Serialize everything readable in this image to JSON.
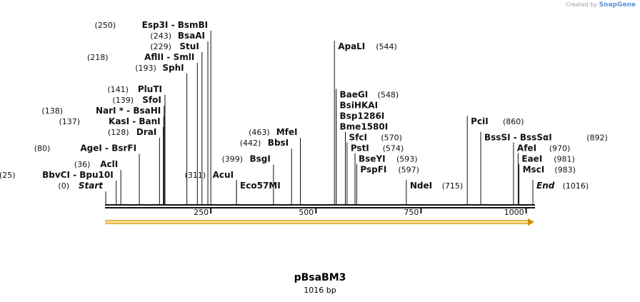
{
  "credit": {
    "prefix": "Created by",
    "brand": "SnapGene"
  },
  "plasmid": {
    "name": "pBsaBM3",
    "length_text": "1016 bp",
    "length": 1016
  },
  "colors": {
    "feature_fill": "#f5d78a",
    "feature_stroke": "#d9a017",
    "feature_arrow": "#d08a00",
    "line": "#111111"
  },
  "axis": {
    "ticks": [
      250,
      500,
      750,
      1000
    ]
  },
  "sites": [
    {
      "id": "esp3i",
      "pos": 250,
      "pos_text": "(250)",
      "label1": "Esp3I",
      "label2": "BsmBI",
      "row": 0,
      "col": "L"
    },
    {
      "id": "bsaai",
      "pos": 243,
      "pos_text": "(243)",
      "label1": "BsaAI",
      "row": 1,
      "col": "L"
    },
    {
      "id": "stui",
      "pos": 229,
      "pos_text": "(229)",
      "label1": "StuI",
      "row": 2,
      "col": "L"
    },
    {
      "id": "aflii",
      "pos": 218,
      "pos_text": "(218)",
      "label1": "AflII",
      "label2": "SmlI",
      "row": 3,
      "col": "L"
    },
    {
      "id": "sphi",
      "pos": 193,
      "pos_text": "(193)",
      "label1": "SphI",
      "row": 4,
      "col": "L"
    },
    {
      "id": "pluti",
      "pos": 141,
      "pos_text": "(141)",
      "label1": "PluTI",
      "row": 6,
      "col": "L"
    },
    {
      "id": "sfoi",
      "pos": 139,
      "pos_text": "(139)",
      "label1": "SfoI",
      "row": 7,
      "col": "L"
    },
    {
      "id": "nari",
      "pos": 138,
      "pos_text": "(138)",
      "label1": "NarI *",
      "label2": "BsaHI",
      "row": 8,
      "col": "L"
    },
    {
      "id": "kasi",
      "pos": 137,
      "pos_text": "(137)",
      "label1": "KasI",
      "label2": "BanI",
      "row": 9,
      "col": "L"
    },
    {
      "id": "drai",
      "pos": 128,
      "pos_text": "(128)",
      "label1": "DraI",
      "row": 10,
      "col": "L"
    },
    {
      "id": "agei",
      "pos": 80,
      "pos_text": "(80)",
      "label1": "AgeI",
      "label2": "BsrFI",
      "row": 11.5,
      "col": "L"
    },
    {
      "id": "acii",
      "pos": 36,
      "pos_text": "(36)",
      "label1": "AclI",
      "row": 13,
      "col": "L"
    },
    {
      "id": "bbvci",
      "pos": 25,
      "pos_text": "(25)",
      "label1": "BbvCI",
      "label2": "Bpu10I",
      "row": 14,
      "col": "L"
    },
    {
      "id": "start",
      "pos": 0,
      "pos_text": "(0)",
      "label1": "Start",
      "row": 15,
      "col": "L",
      "italic": true
    },
    {
      "id": "acui",
      "pos": 311,
      "pos_text": "(311)",
      "label1": "AcuI",
      "row": 14,
      "col": "L"
    },
    {
      "id": "eco57mi",
      "pos": 311,
      "label1": "Eco57MI",
      "row": 15,
      "col": "R"
    },
    {
      "id": "mfei",
      "pos": 463,
      "pos_text": "(463)",
      "label1": "MfeI",
      "row": 10,
      "col": "L"
    },
    {
      "id": "bbsi",
      "pos": 442,
      "pos_text": "(442)",
      "label1": "BbsI",
      "row": 11,
      "col": "L"
    },
    {
      "id": "bsgi",
      "pos": 399,
      "pos_text": "(399)",
      "label1": "BsgI",
      "row": 12.5,
      "col": "L"
    },
    {
      "id": "apali",
      "pos": 544,
      "pos_text": "(544)",
      "label1": "ApaLI",
      "row": 2,
      "col": "R"
    },
    {
      "id": "baegi",
      "pos": 548,
      "pos_text": "(548)",
      "label1": "BaeGI",
      "row": 6.5,
      "col": "R"
    },
    {
      "id": "bsihkai",
      "pos": 548,
      "label1": "BsiHKAI",
      "row": 7.5,
      "col": "R"
    },
    {
      "id": "bsp1286i",
      "pos": 548,
      "label1": "Bsp1286I",
      "row": 8.5,
      "col": "R"
    },
    {
      "id": "bme1580i",
      "pos": 548,
      "label1": "Bme1580I",
      "row": 9.5,
      "col": "R"
    },
    {
      "id": "sfci",
      "pos": 570,
      "pos_text": "(570)",
      "label1": "SfcI",
      "row": 10.5,
      "col": "R"
    },
    {
      "id": "psti",
      "pos": 574,
      "pos_text": "(574)",
      "label1": "PstI",
      "row": 11.5,
      "col": "R"
    },
    {
      "id": "bseyi",
      "pos": 593,
      "pos_text": "(593)",
      "label1": "BseYI",
      "row": 12.5,
      "col": "R"
    },
    {
      "id": "pspfi",
      "pos": 597,
      "pos_text": "(597)",
      "label1": "PspFI",
      "row": 13.5,
      "col": "R"
    },
    {
      "id": "ndei",
      "pos": 715,
      "pos_text": "(715)",
      "label1": "NdeI",
      "row": 15,
      "col": "R"
    },
    {
      "id": "pcii",
      "pos": 860,
      "pos_text": "(860)",
      "label1": "PciI",
      "row": 9,
      "col": "R"
    },
    {
      "id": "bsssi",
      "pos": 892,
      "pos_text": "(892)",
      "label1": "BssSI",
      "label2": "BssSαI",
      "row": 10.5,
      "col": "R"
    },
    {
      "id": "afei",
      "pos": 970,
      "pos_text": "(970)",
      "label1": "AfeI",
      "row": 11.5,
      "col": "R"
    },
    {
      "id": "eaei",
      "pos": 981,
      "pos_text": "(981)",
      "label1": "EaeI",
      "row": 12.5,
      "col": "R"
    },
    {
      "id": "msci",
      "pos": 983,
      "pos_text": "(983)",
      "label1": "MscI",
      "row": 13.5,
      "col": "R"
    },
    {
      "id": "end",
      "pos": 1016,
      "pos_text": "(1016)",
      "label1": "End",
      "row": 15,
      "col": "R",
      "italic": true
    }
  ]
}
